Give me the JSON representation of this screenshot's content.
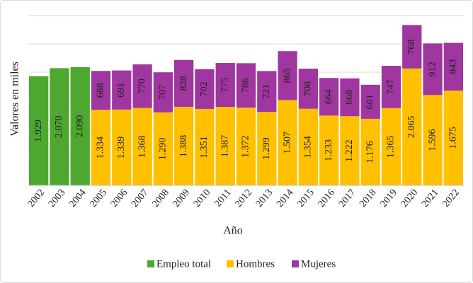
{
  "chart_data": {
    "type": "bar",
    "stacked": true,
    "x_label": "Año",
    "y_label": "Valores en miles",
    "categories": [
      "2002",
      "2003",
      "2004",
      "2005",
      "2006",
      "2007",
      "2008",
      "2009",
      "2010",
      "2011",
      "2012",
      "2013",
      "2014",
      "2015",
      "2016",
      "2017",
      "2018",
      "2019",
      "2020",
      "2021",
      "2022"
    ],
    "series": [
      {
        "name": "Empleo total",
        "color": "#4ea72e",
        "values": [
          1929,
          2070,
          2090,
          null,
          null,
          null,
          null,
          null,
          null,
          null,
          null,
          null,
          null,
          null,
          null,
          null,
          null,
          null,
          null,
          null,
          null
        ],
        "value_labels": [
          "1.929",
          "2.070",
          "2.090",
          null,
          null,
          null,
          null,
          null,
          null,
          null,
          null,
          null,
          null,
          null,
          null,
          null,
          null,
          null,
          null,
          null,
          null
        ]
      },
      {
        "name": "Hombres",
        "color": "#ffc000",
        "values": [
          null,
          null,
          null,
          1334,
          1339,
          1368,
          1290,
          1388,
          1351,
          1387,
          1372,
          1299,
          1507,
          1354,
          1233,
          1222,
          1176,
          1365,
          2065,
          1596,
          1675
        ],
        "value_labels": [
          null,
          null,
          null,
          "1.334",
          "1.339",
          "1.368",
          "1.290",
          "1.388",
          "1.351",
          "1.387",
          "1.372",
          "1.299",
          "1.507",
          "1.354",
          "1.233",
          "1.222",
          "1.176",
          "1.365",
          "2.065",
          "1.596",
          "1.675"
        ]
      },
      {
        "name": "Mujeres",
        "color": "#a0369f",
        "values": [
          null,
          null,
          null,
          688,
          691,
          770,
          707,
          828,
          702,
          775,
          786,
          721,
          865,
          708,
          664,
          668,
          601,
          747,
          768,
          912,
          843
        ]
      }
    ],
    "ylim": [
      0,
      3000
    ],
    "yticks": [
      0,
      500,
      1000,
      1500,
      2000,
      2500,
      3000
    ],
    "grid": true,
    "legend": "bottom"
  }
}
